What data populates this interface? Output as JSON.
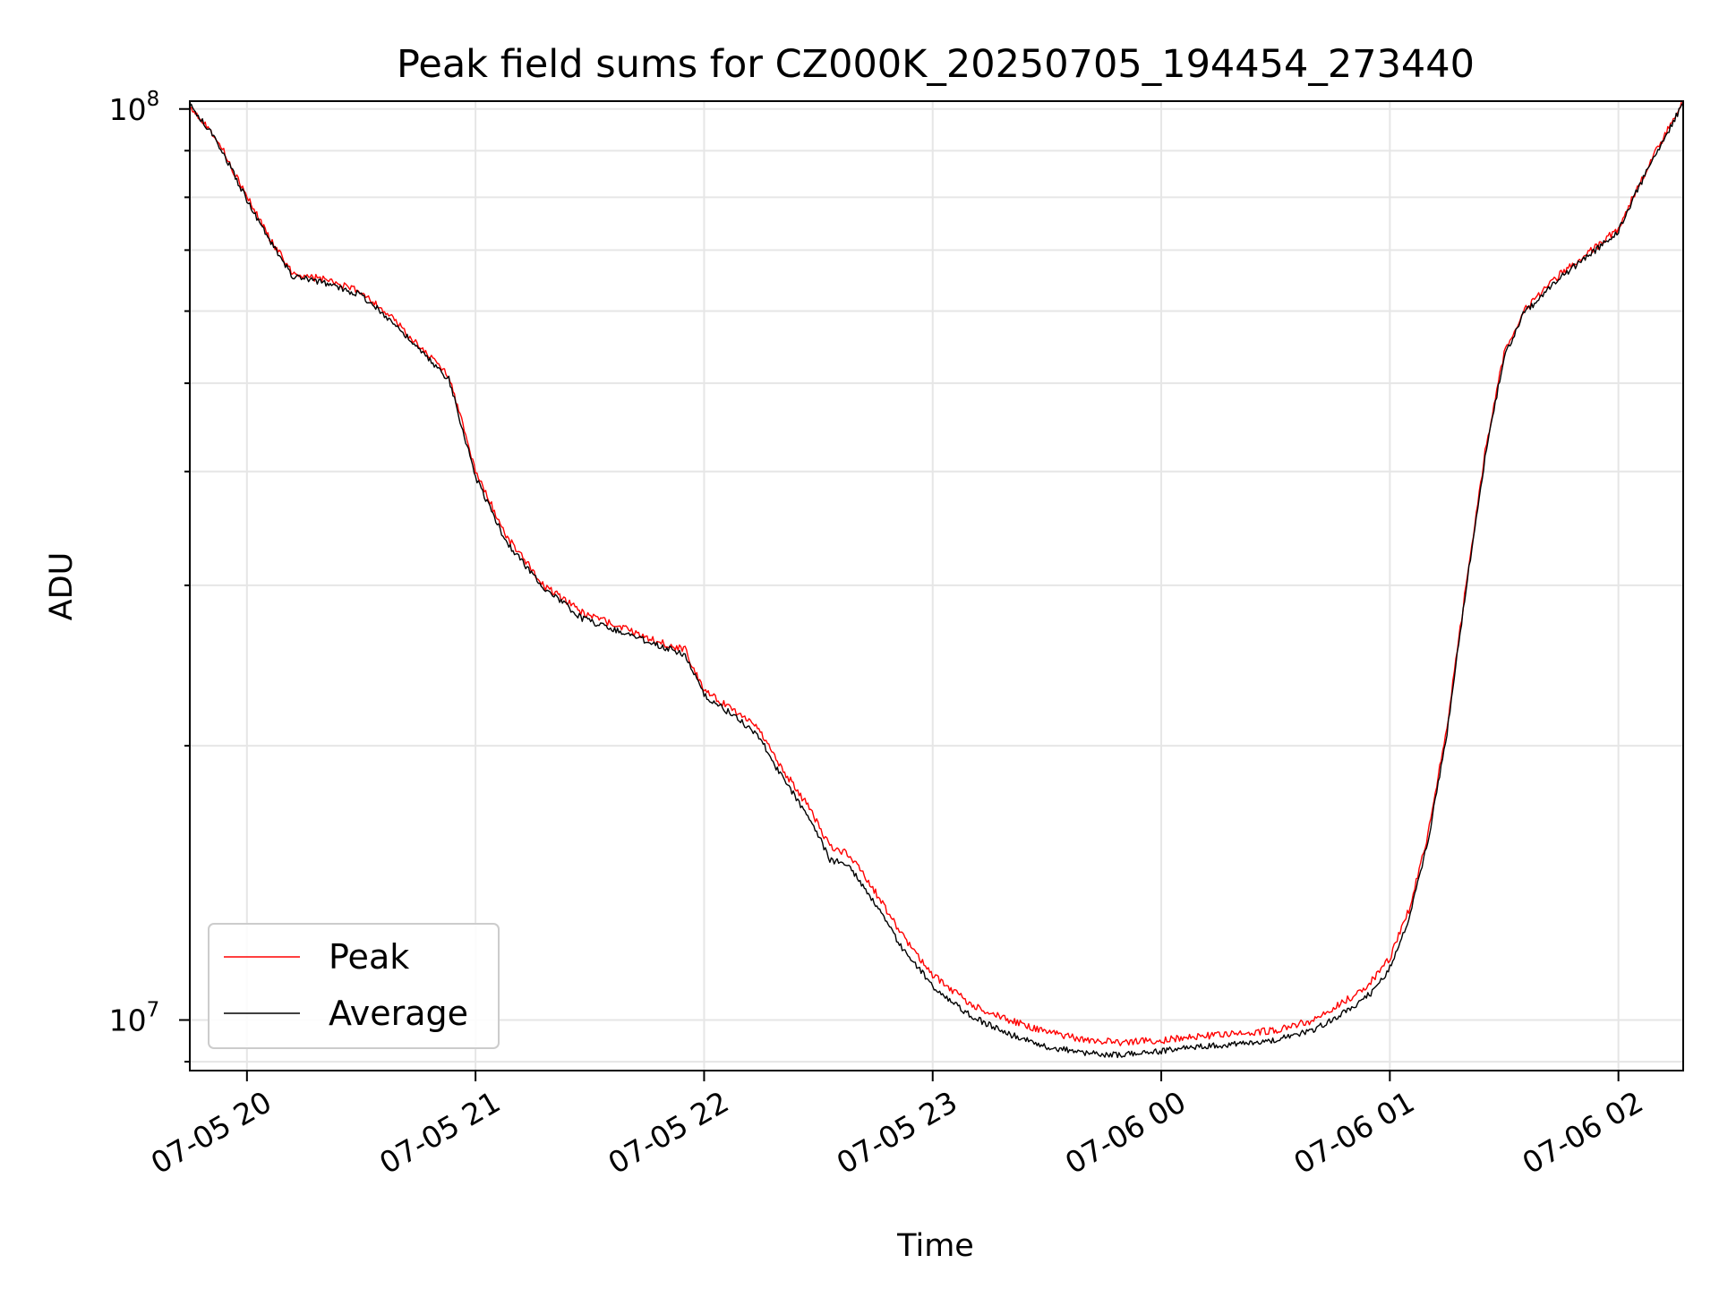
{
  "chart_data": {
    "type": "line",
    "title": "Peak field sums for CZ000K_20250705_194454_273440",
    "xlabel": "Time",
    "ylabel": "ADU",
    "y_scale": "log",
    "xlim": [
      "2025-07-05 19:45",
      "2025-07-06 02:17"
    ],
    "ylim": [
      8800000,
      102000000
    ],
    "x_ticks": [
      {
        "value": "2025-07-05 20:00",
        "label": "07-05 20"
      },
      {
        "value": "2025-07-05 21:00",
        "label": "07-05 21"
      },
      {
        "value": "2025-07-05 22:00",
        "label": "07-05 22"
      },
      {
        "value": "2025-07-05 23:00",
        "label": "07-05 23"
      },
      {
        "value": "2025-07-06 00:00",
        "label": "07-06 00"
      },
      {
        "value": "2025-07-06 01:00",
        "label": "07-06 01"
      },
      {
        "value": "2025-07-06 02:00",
        "label": "07-06 02"
      }
    ],
    "y_ticks": [
      {
        "value": 10000000,
        "base": "10",
        "exp": "7"
      },
      {
        "value": 100000000,
        "base": "10",
        "exp": "8"
      }
    ],
    "grid": true,
    "legend_position": "lower-left",
    "colors": {
      "Peak": "#ff0000",
      "Average": "#000000"
    },
    "x": [
      "2025-07-05 19:45",
      "2025-07-05 19:52",
      "2025-07-05 20:00",
      "2025-07-05 20:07",
      "2025-07-05 20:12",
      "2025-07-05 20:20",
      "2025-07-05 20:30",
      "2025-07-05 20:38",
      "2025-07-05 20:45",
      "2025-07-05 20:53",
      "2025-07-05 21:00",
      "2025-07-05 21:08",
      "2025-07-05 21:18",
      "2025-07-05 21:28",
      "2025-07-05 21:38",
      "2025-07-05 21:48",
      "2025-07-05 21:55",
      "2025-07-05 22:00",
      "2025-07-05 22:07",
      "2025-07-05 22:14",
      "2025-07-05 22:20",
      "2025-07-05 22:28",
      "2025-07-05 22:33",
      "2025-07-05 22:38",
      "2025-07-05 22:45",
      "2025-07-05 22:52",
      "2025-07-05 23:00",
      "2025-07-05 23:10",
      "2025-07-05 23:20",
      "2025-07-05 23:30",
      "2025-07-05 23:40",
      "2025-07-05 23:50",
      "2025-07-06 00:00",
      "2025-07-06 00:10",
      "2025-07-06 00:20",
      "2025-07-06 00:30",
      "2025-07-06 00:40",
      "2025-07-06 00:50",
      "2025-07-06 00:55",
      "2025-07-06 01:00",
      "2025-07-06 01:05",
      "2025-07-06 01:10",
      "2025-07-06 01:15",
      "2025-07-06 01:20",
      "2025-07-06 01:25",
      "2025-07-06 01:30",
      "2025-07-06 01:35",
      "2025-07-06 01:45",
      "2025-07-06 01:55",
      "2025-07-06 02:00",
      "2025-07-06 02:05",
      "2025-07-06 02:10",
      "2025-07-06 02:17"
    ],
    "series": [
      {
        "name": "Peak",
        "values": [
          101000000,
          93000000,
          80000000,
          71000000,
          66000000,
          65000000,
          63000000,
          59000000,
          55000000,
          51000000,
          40000000,
          34000000,
          30000000,
          28000000,
          27000000,
          26000000,
          25500000,
          23000000,
          22000000,
          21000000,
          19000000,
          17000000,
          15500000,
          15200000,
          13800000,
          12400000,
          11200000,
          10400000,
          10000000,
          9700000,
          9500000,
          9450000,
          9500000,
          9600000,
          9650000,
          9750000,
          10000000,
          10600000,
          11000000,
          11700000,
          13200000,
          16000000,
          21000000,
          30000000,
          42000000,
          54000000,
          60000000,
          66000000,
          71000000,
          74000000,
          82000000,
          90000000,
          102000000
        ]
      },
      {
        "name": "Average",
        "values": [
          101000000,
          92500000,
          79500000,
          70500000,
          65500000,
          64500000,
          62500000,
          58500000,
          54500000,
          50500000,
          39500000,
          33500000,
          29800000,
          27600000,
          26700000,
          25800000,
          25200000,
          22700000,
          21700000,
          20600000,
          18600000,
          16600000,
          15000000,
          14800000,
          13400000,
          12000000,
          10900000,
          10100000,
          9650000,
          9350000,
          9200000,
          9150000,
          9250000,
          9350000,
          9400000,
          9500000,
          9750000,
          10300000,
          10700000,
          11400000,
          12900000,
          15700000,
          20700000,
          29700000,
          41500000,
          53500000,
          59500000,
          65500000,
          70500000,
          73500000,
          81500000,
          89500000,
          101500000
        ]
      }
    ]
  }
}
